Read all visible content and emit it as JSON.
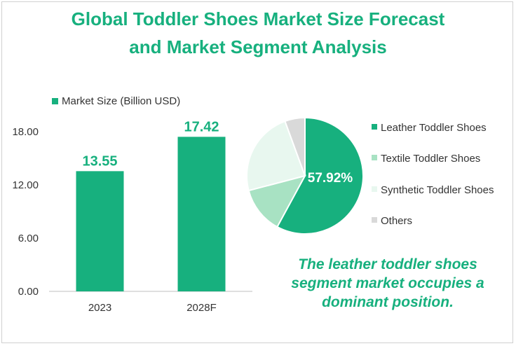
{
  "title_line1": "Global Toddler Shoes Market Size Forecast",
  "title_line2": "and Market Segment Analysis",
  "chart_data": [
    {
      "type": "bar",
      "categories": [
        "2023",
        "2028F"
      ],
      "series": [
        {
          "name": "Market Size (Billion USD)",
          "values": [
            13.55,
            17.42
          ]
        }
      ],
      "data_labels": [
        "13.55",
        "17.42"
      ],
      "yticks": [
        "0.00",
        "6.00",
        "12.00",
        "18.00"
      ],
      "ylim": [
        0,
        18
      ],
      "legend": "top-left",
      "color": "#17b07e"
    },
    {
      "type": "pie",
      "labels": [
        "Leather Toddler Shoes",
        "Textile Toddler Shoes",
        "Synthetic Toddler Shoes",
        "Others"
      ],
      "values": [
        57.92,
        13.0,
        23.5,
        5.58
      ],
      "colors": [
        "#17b07e",
        "#a8e2c3",
        "#e8f7ef",
        "#d9d9d9"
      ],
      "data_label": "57.92%",
      "legend": "right"
    }
  ],
  "annotation": {
    "line1": "The leather toddler shoes",
    "line2": "segment market occupies a",
    "line3": "dominant position."
  }
}
